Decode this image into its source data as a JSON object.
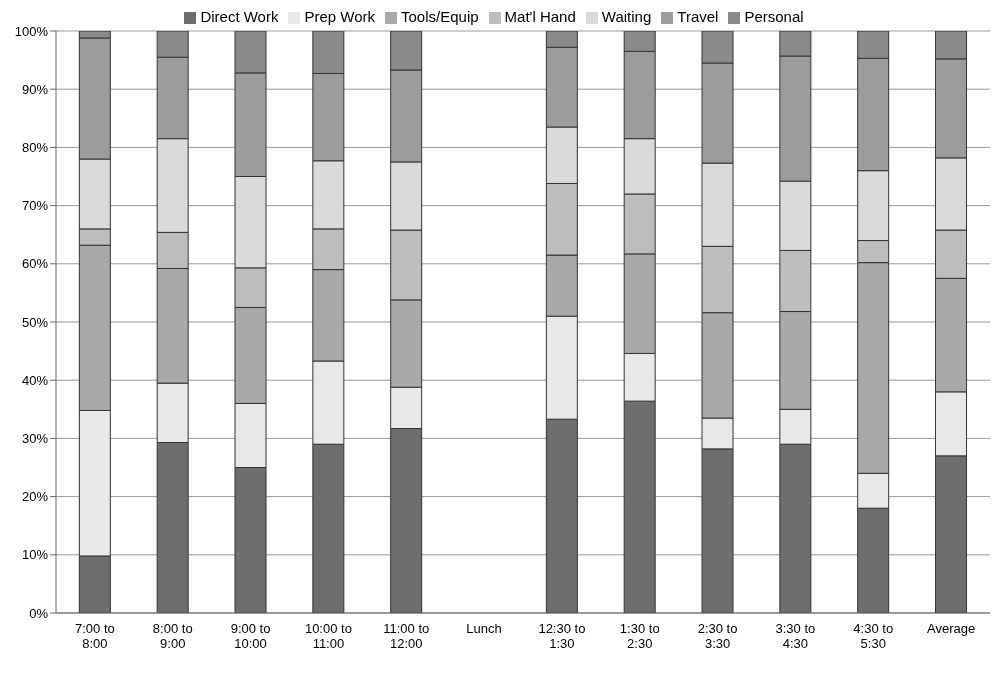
{
  "chart_data": {
    "type": "bar",
    "stacked": true,
    "categories": [
      "7:00 to\n8:00",
      "8:00 to\n9:00",
      "9:00 to\n10:00",
      "10:00 to\n11:00",
      "11:00 to\n12:00",
      "Lunch",
      "12:30 to\n1:30",
      "1:30 to\n2:30",
      "2:30 to\n3:30",
      "3:30 to\n4:30",
      "4:30 to\n5:30",
      "Average"
    ],
    "series": [
      {
        "name": "Direct Work",
        "color": "#6e6e6e",
        "values": [
          9.8,
          29.3,
          25,
          29,
          31.7,
          null,
          33.3,
          36.4,
          28.2,
          29,
          18,
          27
        ]
      },
      {
        "name": "Prep Work",
        "color": "#e8e8e8",
        "values": [
          25,
          10.2,
          11,
          14.3,
          7.1,
          null,
          17.7,
          8.2,
          5.3,
          6,
          6,
          11
        ]
      },
      {
        "name": "Tools/Equip",
        "color": "#a9a9a9",
        "values": [
          28.4,
          19.7,
          16.5,
          15.7,
          15,
          null,
          10.5,
          17.1,
          18.1,
          16.8,
          36.2,
          19.5
        ]
      },
      {
        "name": "Mat'l Hand",
        "color": "#bdbdbd",
        "values": [
          2.8,
          6.2,
          6.8,
          7,
          12,
          null,
          12.3,
          10.3,
          11.4,
          10.5,
          3.8,
          8.3
        ]
      },
      {
        "name": "Waiting",
        "color": "#dadada",
        "values": [
          12,
          16.1,
          15.7,
          11.7,
          11.7,
          null,
          9.7,
          9.5,
          14.3,
          11.9,
          12,
          12.4
        ]
      },
      {
        "name": "Travel",
        "color": "#9c9c9c",
        "values": [
          20.8,
          14,
          17.8,
          15,
          15.8,
          null,
          13.7,
          15,
          17.2,
          21.5,
          19.3,
          17
        ]
      },
      {
        "name": "Personal",
        "color": "#8a8a8a",
        "values": [
          1.2,
          4.5,
          7.2,
          7.3,
          6.7,
          null,
          2.8,
          3.5,
          5.5,
          4.3,
          4.7,
          4.8
        ]
      }
    ],
    "ylim": [
      0,
      100
    ],
    "yticks": [
      {
        "value": 0,
        "label": "0%"
      },
      {
        "value": 10,
        "label": "10%"
      },
      {
        "value": 20,
        "label": "20%"
      },
      {
        "value": 30,
        "label": "30%"
      },
      {
        "value": 40,
        "label": "40%"
      },
      {
        "value": 50,
        "label": "50%"
      },
      {
        "value": 60,
        "label": "60%"
      },
      {
        "value": 70,
        "label": "70%"
      },
      {
        "value": 80,
        "label": "80%"
      },
      {
        "value": 90,
        "label": "90%"
      },
      {
        "value": 100,
        "label": "100%"
      }
    ],
    "grid": "y",
    "legend": "top"
  }
}
